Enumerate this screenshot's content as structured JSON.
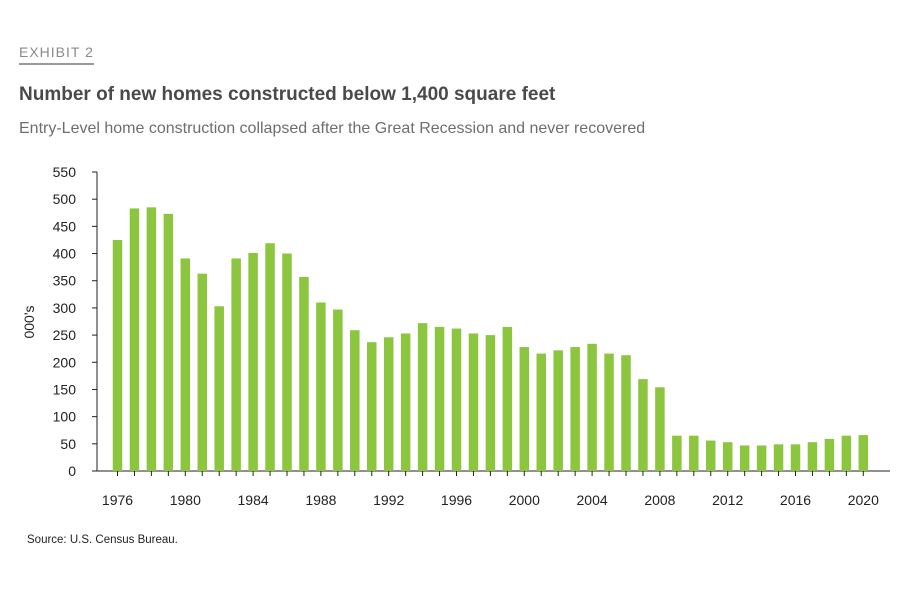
{
  "header": {
    "exhibit_label": "EXHIBIT 2",
    "title": "Number of new homes constructed below 1,400 square feet",
    "subtitle": "Entry-Level home construction collapsed after the Great Recession and never recovered"
  },
  "footer": {
    "source": "Source: U.S. Census Bureau."
  },
  "chart_data": {
    "type": "bar",
    "title": "Number of new homes constructed below 1,400 square feet",
    "subtitle": "Entry-Level home construction collapsed after the Great Recession and never recovered",
    "xlabel": "",
    "ylabel": "000's",
    "ylim": [
      0,
      550
    ],
    "yticks": [
      0,
      50,
      100,
      150,
      200,
      250,
      300,
      350,
      400,
      450,
      500,
      550
    ],
    "xtick_labels": [
      "1976",
      "1980",
      "1984",
      "1988",
      "1992",
      "1996",
      "2000",
      "2004",
      "2008",
      "2012",
      "2016",
      "2020"
    ],
    "categories": [
      1976,
      1977,
      1978,
      1979,
      1980,
      1981,
      1982,
      1983,
      1984,
      1985,
      1986,
      1987,
      1988,
      1989,
      1990,
      1991,
      1992,
      1993,
      1994,
      1995,
      1996,
      1997,
      1998,
      1999,
      2000,
      2001,
      2002,
      2003,
      2004,
      2005,
      2006,
      2007,
      2008,
      2009,
      2010,
      2011,
      2012,
      2013,
      2014,
      2015,
      2016,
      2017,
      2018,
      2019,
      2020
    ],
    "values": [
      425,
      483,
      485,
      473,
      391,
      363,
      303,
      391,
      401,
      419,
      400,
      357,
      310,
      297,
      259,
      237,
      246,
      253,
      272,
      265,
      262,
      253,
      250,
      265,
      228,
      216,
      222,
      228,
      234,
      216,
      213,
      169,
      154,
      65,
      65,
      56,
      53,
      47,
      47,
      49,
      49,
      53,
      59,
      65,
      66
    ],
    "bar_color": "#8cc63e",
    "grid": false,
    "legend": "none"
  }
}
